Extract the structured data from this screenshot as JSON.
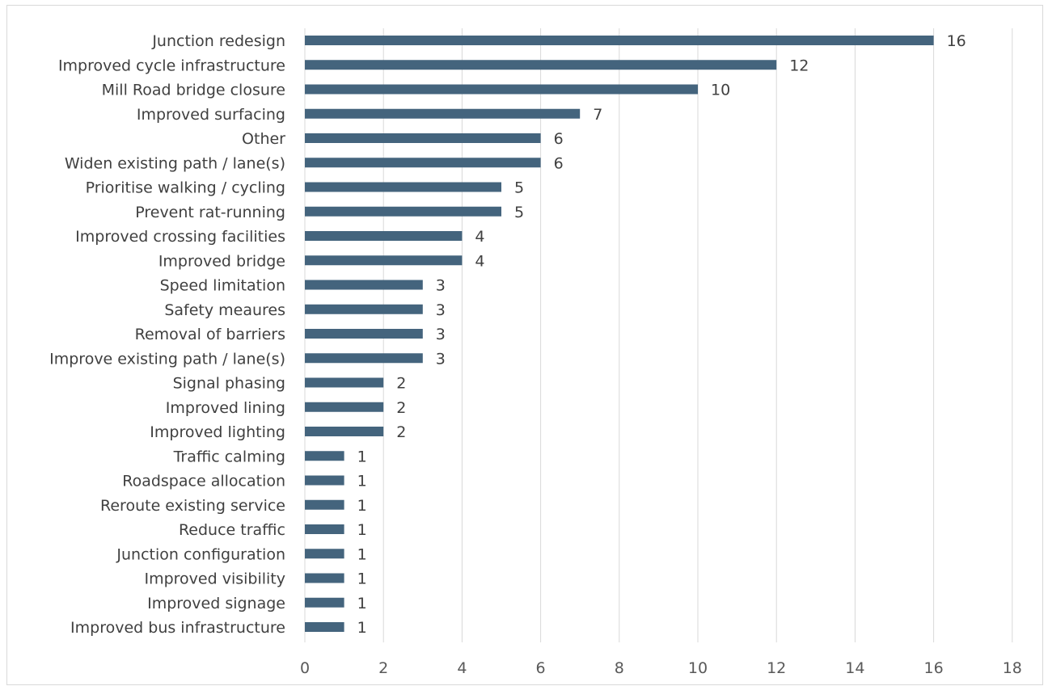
{
  "chart_data": {
    "type": "bar",
    "orientation": "horizontal",
    "title": "",
    "xlabel": "",
    "ylabel": "",
    "categories": [
      "Junction redesign",
      "Improved cycle infrastructure",
      "Mill Road bridge closure",
      "Improved surfacing",
      "Other",
      "Widen existing path / lane(s)",
      "Prioritise walking / cycling",
      "Prevent rat-running",
      "Improved crossing facilities",
      "Improved bridge",
      "Speed limitation",
      "Safety meaures",
      "Removal of barriers",
      "Improve existing path / lane(s)",
      "Signal phasing",
      "Improved lining",
      "Improved lighting",
      "Traffic calming",
      "Roadspace allocation",
      "Reroute existing service",
      "Reduce traffic",
      "Junction configuration",
      "Improved visibility",
      "Improved signage",
      "Improved bus infrastructure"
    ],
    "values": [
      16,
      12,
      10,
      7,
      6,
      6,
      5,
      5,
      4,
      4,
      3,
      3,
      3,
      3,
      2,
      2,
      2,
      1,
      1,
      1,
      1,
      1,
      1,
      1,
      1
    ],
    "xlim": [
      0,
      18
    ],
    "xticks": [
      0,
      2,
      4,
      6,
      8,
      10,
      12,
      14,
      16,
      18
    ],
    "grid": true,
    "legend": "none",
    "bar_color": "#44647d",
    "grid_color": "#d9d9d9"
  }
}
